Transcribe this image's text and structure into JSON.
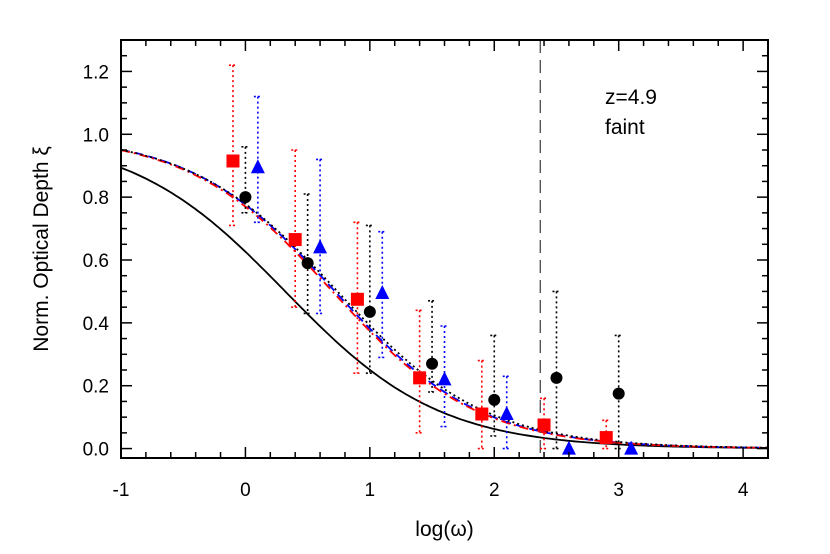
{
  "chart_data": {
    "type": "scatter",
    "xlabel": "log(ω)",
    "ylabel": "Norm. Optical Depth ξ",
    "xlim": [
      -1,
      4.2
    ],
    "ylim": [
      -0.03,
      1.3
    ],
    "xticks": [
      -1,
      0,
      1,
      2,
      3,
      4
    ],
    "xtick_labels": [
      "-1",
      "0",
      "1",
      "2",
      "3",
      "4"
    ],
    "yticks": [
      0.0,
      0.2,
      0.4,
      0.6,
      0.8,
      1.0,
      1.2
    ],
    "ytick_labels": [
      "0.0",
      "0.2",
      "0.4",
      "0.6",
      "0.8",
      "1.0",
      "1.2"
    ],
    "annotations": [
      "z=4.9",
      "faint"
    ],
    "vline_x": 2.37,
    "grid": false,
    "series": [
      {
        "marker": "circle",
        "color": "#000000",
        "x": [
          0.0,
          0.5,
          1.0,
          1.5,
          2.0,
          2.5,
          3.0
        ],
        "y": [
          0.8,
          0.59,
          0.435,
          0.27,
          0.155,
          0.225,
          0.175
        ],
        "err_low": [
          0.75,
          0.43,
          0.24,
          0.18,
          0.04,
          0.0,
          0.0
        ],
        "err_high": [
          0.96,
          0.81,
          0.71,
          0.47,
          0.36,
          0.5,
          0.36
        ]
      },
      {
        "marker": "square",
        "color": "#ff0000",
        "x": [
          -0.1,
          0.4,
          0.9,
          1.4,
          1.9,
          2.4,
          2.9
        ],
        "y": [
          0.915,
          0.665,
          0.475,
          0.225,
          0.11,
          0.075,
          0.035
        ],
        "err_low": [
          0.71,
          0.45,
          0.24,
          0.05,
          0.0,
          0.0,
          0.0
        ],
        "err_high": [
          1.22,
          0.95,
          0.72,
          0.44,
          0.28,
          0.16,
          0.09
        ]
      },
      {
        "marker": "triangle",
        "color": "#0000ff",
        "x": [
          0.1,
          0.6,
          1.1,
          1.6,
          2.1,
          2.6,
          3.1
        ],
        "y": [
          0.895,
          0.64,
          0.495,
          0.22,
          0.11,
          0.0,
          0.0
        ],
        "err_low": [
          0.72,
          0.43,
          0.29,
          0.07,
          0.0,
          0.0,
          0.0
        ],
        "err_high": [
          1.12,
          0.92,
          0.69,
          0.39,
          0.23,
          0.0,
          0.0
        ]
      }
    ],
    "curves": [
      {
        "color": "#000000",
        "style": "solid",
        "x0": 0.32,
        "w": 0.62
      },
      {
        "color": "#0000ff",
        "style": "dashed",
        "x0": 0.72,
        "w": 0.58
      },
      {
        "color": "#ff0000",
        "style": "dashdot",
        "x0": 0.7,
        "w": 0.58
      },
      {
        "color": "#000000",
        "style": "dotted",
        "x0": 0.74,
        "w": 0.59
      }
    ]
  }
}
